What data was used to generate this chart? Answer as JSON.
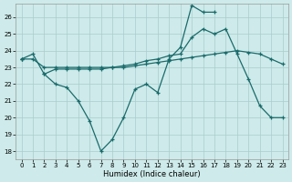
{
  "xlabel": "Humidex (Indice chaleur)",
  "background_color": "#ceeaea",
  "grid_color": "#aacccc",
  "line_color": "#1a6b6b",
  "xlim": [
    -0.5,
    23.5
  ],
  "ylim": [
    17.5,
    26.8
  ],
  "yticks": [
    18,
    19,
    20,
    21,
    22,
    23,
    24,
    25,
    26
  ],
  "xticks": [
    0,
    1,
    2,
    3,
    4,
    5,
    6,
    7,
    8,
    9,
    10,
    11,
    12,
    13,
    14,
    15,
    16,
    17,
    18,
    19,
    20,
    21,
    22,
    23
  ],
  "series": [
    {
      "x": [
        0,
        1,
        2,
        3,
        4,
        5,
        6,
        7,
        8,
        9,
        10,
        11,
        12,
        13,
        14,
        15,
        16,
        17,
        18,
        19,
        20,
        21,
        22,
        23
      ],
      "y": [
        23.5,
        23.5,
        23.0,
        23.0,
        23.0,
        23.0,
        23.0,
        23.0,
        23.0,
        23.0,
        23.1,
        23.2,
        23.3,
        23.4,
        23.5,
        23.6,
        23.7,
        23.8,
        23.9,
        24.0,
        23.9,
        23.8,
        23.5,
        23.2
      ]
    },
    {
      "x": [
        0,
        1,
        2,
        3,
        4,
        5,
        6,
        7,
        8,
        9,
        10,
        11,
        12,
        13,
        14,
        15,
        16,
        17,
        18,
        19,
        20,
        21,
        22,
        23
      ],
      "y": [
        23.5,
        23.8,
        22.6,
        22.0,
        21.8,
        21.0,
        19.8,
        18.0,
        18.7,
        20.0,
        21.7,
        22.0,
        21.5,
        23.5,
        24.2,
        26.7,
        26.3,
        26.3,
        null,
        null,
        null,
        null,
        null,
        null
      ]
    },
    {
      "x": [
        0,
        1,
        2,
        3,
        4,
        5,
        6,
        7,
        8,
        9,
        10,
        11,
        12,
        13,
        14,
        15,
        16,
        17,
        18,
        19,
        20,
        21,
        22,
        23
      ],
      "y": [
        23.5,
        null,
        22.6,
        22.9,
        22.9,
        22.9,
        22.9,
        22.9,
        23.0,
        23.1,
        23.2,
        23.4,
        23.5,
        23.7,
        23.8,
        24.8,
        25.3,
        25.0,
        25.3,
        23.8,
        22.3,
        20.7,
        20.0,
        20.0
      ]
    }
  ]
}
